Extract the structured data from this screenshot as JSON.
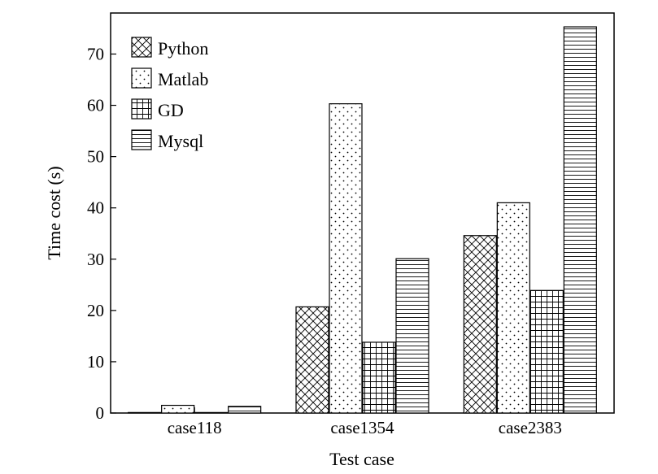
{
  "chart_data": {
    "type": "bar",
    "title": "",
    "xlabel": "Test case",
    "ylabel": "Time cost (s)",
    "categories": [
      "case118",
      "case1354",
      "case2383"
    ],
    "ylim": [
      0,
      78
    ],
    "yticks": [
      0,
      10,
      20,
      30,
      40,
      50,
      60,
      70
    ],
    "legend_position": "top-left",
    "series": [
      {
        "name": "Python",
        "pattern": "crosshatch",
        "values": [
          0.1,
          20.7,
          34.6
        ]
      },
      {
        "name": "Matlab",
        "pattern": "dots",
        "values": [
          1.5,
          60.3,
          41.0
        ]
      },
      {
        "name": "GD",
        "pattern": "grid",
        "values": [
          0.1,
          13.8,
          23.9
        ]
      },
      {
        "name": "Mysql",
        "pattern": "horizontal-lines",
        "values": [
          1.3,
          30.1,
          75.3
        ]
      }
    ]
  }
}
